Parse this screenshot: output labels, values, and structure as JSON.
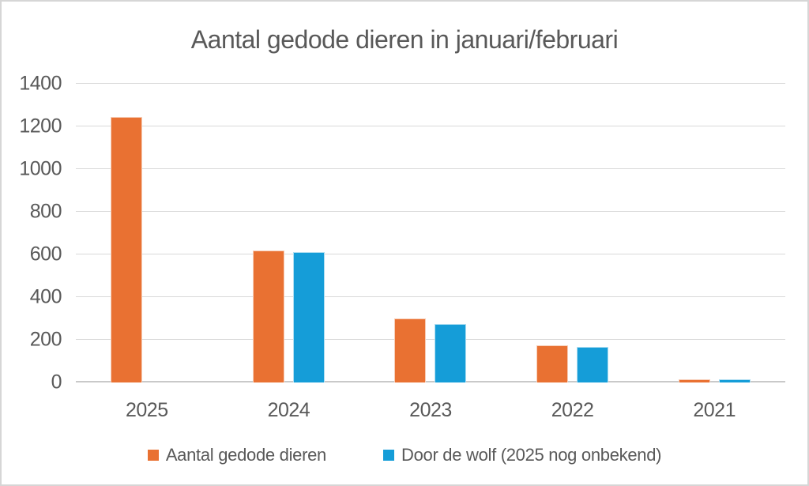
{
  "chart_data": {
    "type": "bar",
    "title": "Aantal gedode dieren in januari/februari",
    "categories": [
      "2025",
      "2024",
      "2023",
      "2022",
      "2021"
    ],
    "series": [
      {
        "name": "Aantal gedode dieren",
        "color": "#E97132",
        "values": [
          1245,
          620,
          300,
          175,
          15
        ]
      },
      {
        "name": "Door de wolf (2025 nog onbekend)",
        "color": "#159DD8",
        "values": [
          null,
          610,
          275,
          165,
          15
        ]
      }
    ],
    "ylim": [
      0,
      1400
    ],
    "yticks": [
      0,
      200,
      400,
      600,
      800,
      1000,
      1200,
      1400
    ],
    "xlabel": "",
    "ylabel": "",
    "grid": "horizontal",
    "legend_position": "bottom"
  },
  "colors": {
    "text": "#595959",
    "gridline": "#D9D9D9",
    "background": "#FFFFFF",
    "border": "#D6D6D6"
  }
}
